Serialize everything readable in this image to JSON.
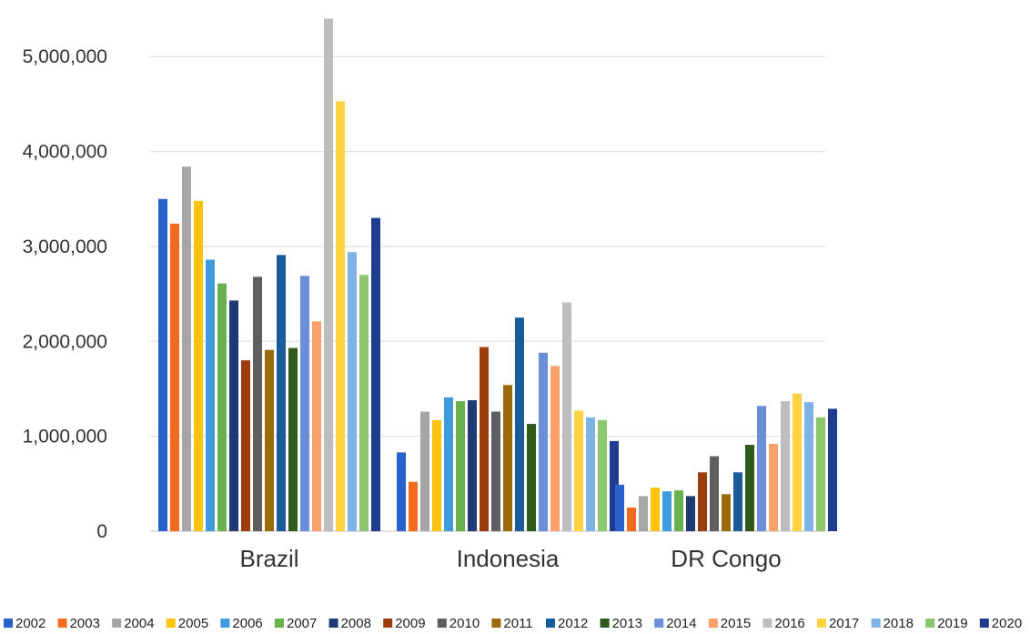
{
  "chart_data": {
    "type": "bar",
    "title": "",
    "xlabel": "",
    "ylabel": "",
    "ylim": [
      0,
      5500000
    ],
    "yticks": [
      0,
      1000000,
      2000000,
      3000000,
      4000000,
      5000000
    ],
    "ytick_labels": [
      "0",
      "1,000,000",
      "2,000,000",
      "3,000,000",
      "4,000,000",
      "5,000,000"
    ],
    "grid": true,
    "legend_position": "bottom",
    "categories": [
      "Brazil",
      "Indonesia",
      "DR Congo"
    ],
    "series": [
      {
        "name": "2002",
        "color": "#2962c9",
        "values": [
          3500000,
          830000,
          490000
        ]
      },
      {
        "name": "2003",
        "color": "#f26b21",
        "values": [
          3240000,
          520000,
          250000
        ]
      },
      {
        "name": "2004",
        "color": "#a6a6a6",
        "values": [
          3840000,
          1260000,
          370000
        ]
      },
      {
        "name": "2005",
        "color": "#ffc20e",
        "values": [
          3480000,
          1170000,
          460000
        ]
      },
      {
        "name": "2006",
        "color": "#3f9bdc",
        "values": [
          2860000,
          1410000,
          420000
        ]
      },
      {
        "name": "2007",
        "color": "#6ab04c",
        "values": [
          2610000,
          1370000,
          430000
        ]
      },
      {
        "name": "2008",
        "color": "#1f3b73",
        "values": [
          2430000,
          1380000,
          370000
        ]
      },
      {
        "name": "2009",
        "color": "#9c3d0e",
        "values": [
          1800000,
          1940000,
          620000
        ]
      },
      {
        "name": "2010",
        "color": "#5f5f5f",
        "values": [
          2680000,
          1260000,
          790000
        ]
      },
      {
        "name": "2011",
        "color": "#9a6a0c",
        "values": [
          1910000,
          1540000,
          390000
        ]
      },
      {
        "name": "2012",
        "color": "#1a5c9a",
        "values": [
          2910000,
          2250000,
          620000
        ]
      },
      {
        "name": "2013",
        "color": "#2f5a1c",
        "values": [
          1930000,
          1130000,
          910000
        ]
      },
      {
        "name": "2014",
        "color": "#6a8fd8",
        "values": [
          2690000,
          1880000,
          1320000
        ]
      },
      {
        "name": "2015",
        "color": "#f9a06b",
        "values": [
          2210000,
          1740000,
          920000
        ]
      },
      {
        "name": "2016",
        "color": "#bdbdbd",
        "values": [
          5400000,
          2410000,
          1370000
        ]
      },
      {
        "name": "2017",
        "color": "#ffd23f",
        "values": [
          4530000,
          1270000,
          1450000
        ]
      },
      {
        "name": "2018",
        "color": "#7fb3e6",
        "values": [
          2940000,
          1200000,
          1360000
        ]
      },
      {
        "name": "2019",
        "color": "#8cc66e",
        "values": [
          2700000,
          1170000,
          1200000
        ]
      },
      {
        "name": "2020",
        "color": "#1e3d8f",
        "values": [
          3300000,
          950000,
          1290000
        ]
      }
    ]
  }
}
